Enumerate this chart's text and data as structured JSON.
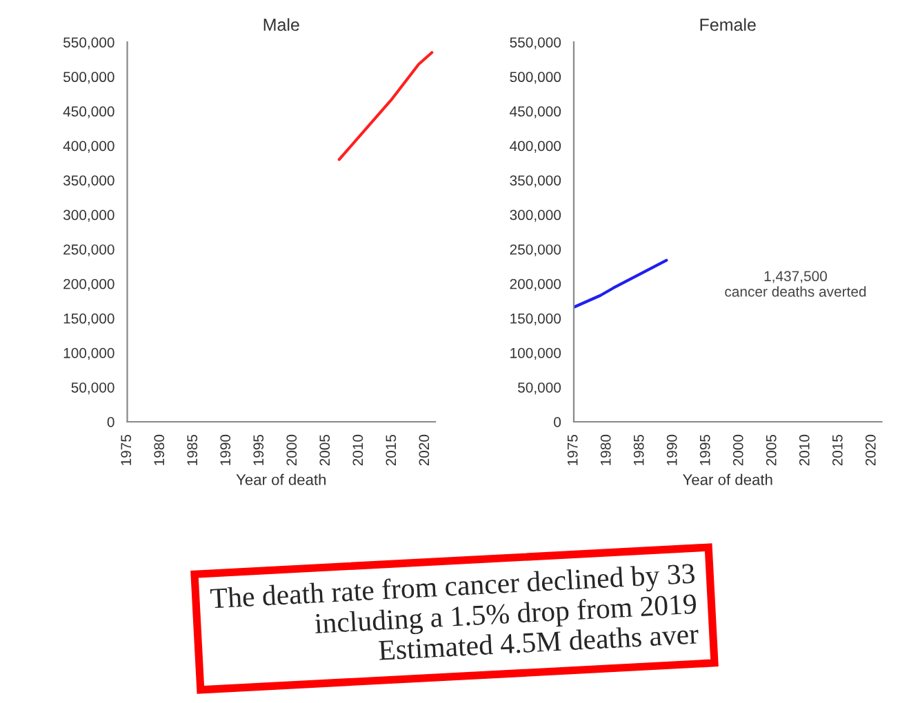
{
  "chart_data": [
    {
      "type": "line",
      "title": "Male",
      "xlabel": "Year of death",
      "series": [
        {
          "color": "#ff2020",
          "x": [
            2007,
            2010,
            2015,
            2019,
            2021
          ],
          "values": [
            380000,
            413000,
            468000,
            518000,
            535000
          ]
        }
      ],
      "xlim": [
        1975,
        2021.5
      ],
      "xticks": [
        1975,
        1980,
        1985,
        1990,
        1995,
        2000,
        2005,
        2010,
        2015,
        2020
      ],
      "ylim": [
        0,
        550000
      ],
      "yticks": [
        0,
        {
          "value": 50000,
          "label": "50,000"
        },
        {
          "value": 100000,
          "label": "100,000"
        },
        {
          "value": 150000,
          "label": "150,000"
        },
        {
          "value": 200000,
          "label": "200,000"
        },
        {
          "value": 250000,
          "label": "250,000"
        },
        {
          "value": 300000,
          "label": "300,000"
        },
        {
          "value": 350000,
          "label": "350,000"
        },
        {
          "value": 400000,
          "label": "400,000"
        },
        {
          "value": 450000,
          "label": "450,000"
        },
        {
          "value": 500000,
          "label": "500,000"
        },
        {
          "value": 550000,
          "label": "550,000"
        }
      ],
      "grid": false,
      "marker": "none",
      "line_style": "solid",
      "annotations": [
        "The death rate from cancer declined by 33\nincluding a 1.5% drop from 2019\nEstimated 4.5M deaths aver"
      ]
    },
    {
      "type": "line",
      "title": "Female",
      "xlabel": "Year of death",
      "series": [
        {
          "color": "#2020ee",
          "x": [
            1975,
            1979,
            1981,
            1985,
            1989
          ],
          "values": [
            166000,
            183000,
            194000,
            214000,
            234000
          ]
        }
      ],
      "xlim": [
        1975,
        2021.5
      ],
      "xticks": [
        1975,
        1980,
        1985,
        1990,
        1995,
        2000,
        2005,
        2010,
        2015,
        2020
      ],
      "ylim": [
        0,
        550000
      ],
      "yticks": [
        0,
        {
          "value": 50000,
          "label": "50,000"
        },
        {
          "value": 100000,
          "label": "100,000"
        },
        {
          "value": 150000,
          "label": "150,000"
        },
        {
          "value": 200000,
          "label": "200,000"
        },
        {
          "value": 250000,
          "label": "250,000"
        },
        {
          "value": 300000,
          "label": "300,000"
        },
        {
          "value": 350000,
          "label": "350,000"
        },
        {
          "value": 400000,
          "label": "400,000"
        },
        {
          "value": 450000,
          "label": "450,000"
        },
        {
          "value": 500000,
          "label": "500,000"
        },
        {
          "value": 550000,
          "label": "550,000"
        }
      ],
      "grid": false,
      "marker": "none",
      "line_style": "solid",
      "annotations": [
        "1,437,500\ncancer deaths averted"
      ]
    }
  ]
}
